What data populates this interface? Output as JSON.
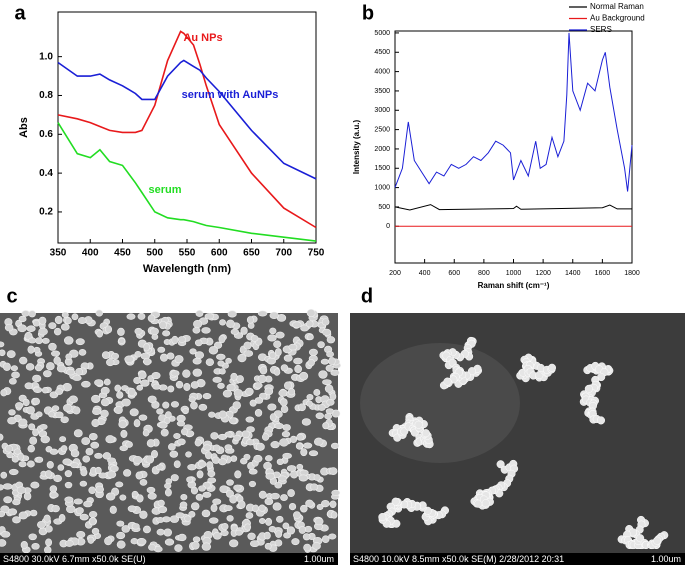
{
  "chart_data": [
    {
      "type": "line",
      "panel_label": "a",
      "xlabel": "Wavelength (nm)",
      "ylabel": "Abs",
      "x": [
        350,
        380,
        400,
        415,
        430,
        450,
        470,
        480,
        500,
        520,
        540,
        545,
        560,
        570,
        580,
        600,
        650,
        700,
        750
      ],
      "series": [
        {
          "name": "Au NPs",
          "color": "#e8191b",
          "values": [
            0.7,
            0.68,
            0.66,
            0.64,
            0.62,
            0.61,
            0.61,
            0.62,
            0.75,
            0.98,
            1.13,
            1.12,
            1.06,
            0.96,
            0.85,
            0.65,
            0.4,
            0.22,
            0.12
          ]
        },
        {
          "name": "serum with AuNPs",
          "color": "#1a1fd6",
          "values": [
            0.97,
            0.9,
            0.9,
            0.91,
            0.88,
            0.85,
            0.81,
            0.78,
            0.78,
            0.9,
            0.97,
            0.98,
            0.95,
            0.93,
            0.89,
            0.82,
            0.62,
            0.45,
            0.37
          ]
        },
        {
          "name": "serum",
          "color": "#22dd22",
          "values": [
            0.66,
            0.5,
            0.48,
            0.52,
            0.46,
            0.44,
            0.35,
            0.3,
            0.2,
            0.17,
            0.16,
            0.16,
            0.15,
            0.14,
            0.13,
            0.12,
            0.09,
            0.07,
            0.05
          ]
        }
      ],
      "xlim": [
        350,
        750
      ],
      "xticks": [
        350,
        400,
        450,
        500,
        550,
        600,
        650,
        700,
        750
      ],
      "ylim": [
        0.04,
        1.23
      ],
      "yticks": [
        0.2,
        0.4,
        0.6,
        0.8,
        1.0
      ]
    },
    {
      "type": "line",
      "panel_label": "b",
      "xlabel": "Raman shift (cm⁻¹)",
      "ylabel": "Intensity (a.u.)",
      "legend": "top-right",
      "series": [
        {
          "name": "Normal Raman",
          "color": "#000000",
          "x": [
            200,
            300,
            440,
            500,
            1000,
            1020,
            1050,
            1600,
            1650,
            1700,
            1800
          ],
          "values": [
            500,
            420,
            560,
            430,
            460,
            520,
            440,
            480,
            550,
            450,
            450
          ]
        },
        {
          "name": "Au Background",
          "color": "#e8191b",
          "x": [
            200,
            1800
          ],
          "values": [
            0,
            0
          ]
        },
        {
          "name": "SERS",
          "color": "#1a1fd6",
          "x": [
            200,
            250,
            290,
            330,
            380,
            430,
            480,
            530,
            580,
            630,
            680,
            730,
            780,
            830,
            880,
            930,
            980,
            1000,
            1050,
            1100,
            1150,
            1180,
            1220,
            1260,
            1300,
            1340,
            1360,
            1375,
            1400,
            1450,
            1500,
            1550,
            1600,
            1620,
            1650,
            1700,
            1750,
            1770,
            1800
          ],
          "values": [
            1000,
            1500,
            2700,
            1700,
            1400,
            1100,
            1400,
            1300,
            1600,
            1500,
            1600,
            1800,
            1700,
            1900,
            2200,
            2100,
            1900,
            1200,
            1700,
            1300,
            2200,
            1500,
            1600,
            2300,
            1800,
            2200,
            3400,
            5000,
            3500,
            3000,
            3700,
            3500,
            4300,
            4500,
            3600,
            2500,
            1500,
            900,
            2100
          ]
        }
      ],
      "xlim": [
        200,
        1800
      ],
      "xticks": [
        200,
        400,
        600,
        800,
        1000,
        1200,
        1400,
        1600,
        1800
      ],
      "ylim": [
        -950,
        5050
      ],
      "yticks": [
        0,
        500,
        1000,
        1500,
        2000,
        2500,
        3000,
        3500,
        4000,
        4500,
        5000
      ]
    }
  ],
  "images": [
    {
      "panel_label": "c",
      "caption": "S4800 30.0kV 6.7mm x50.0k SE(U)",
      "scale_bar": "1.00um"
    },
    {
      "panel_label": "d",
      "caption": "S4800 10.0kV 8.5mm x50.0k SE(M) 2/28/2012 20:31",
      "scale_bar": "1.00um"
    }
  ]
}
